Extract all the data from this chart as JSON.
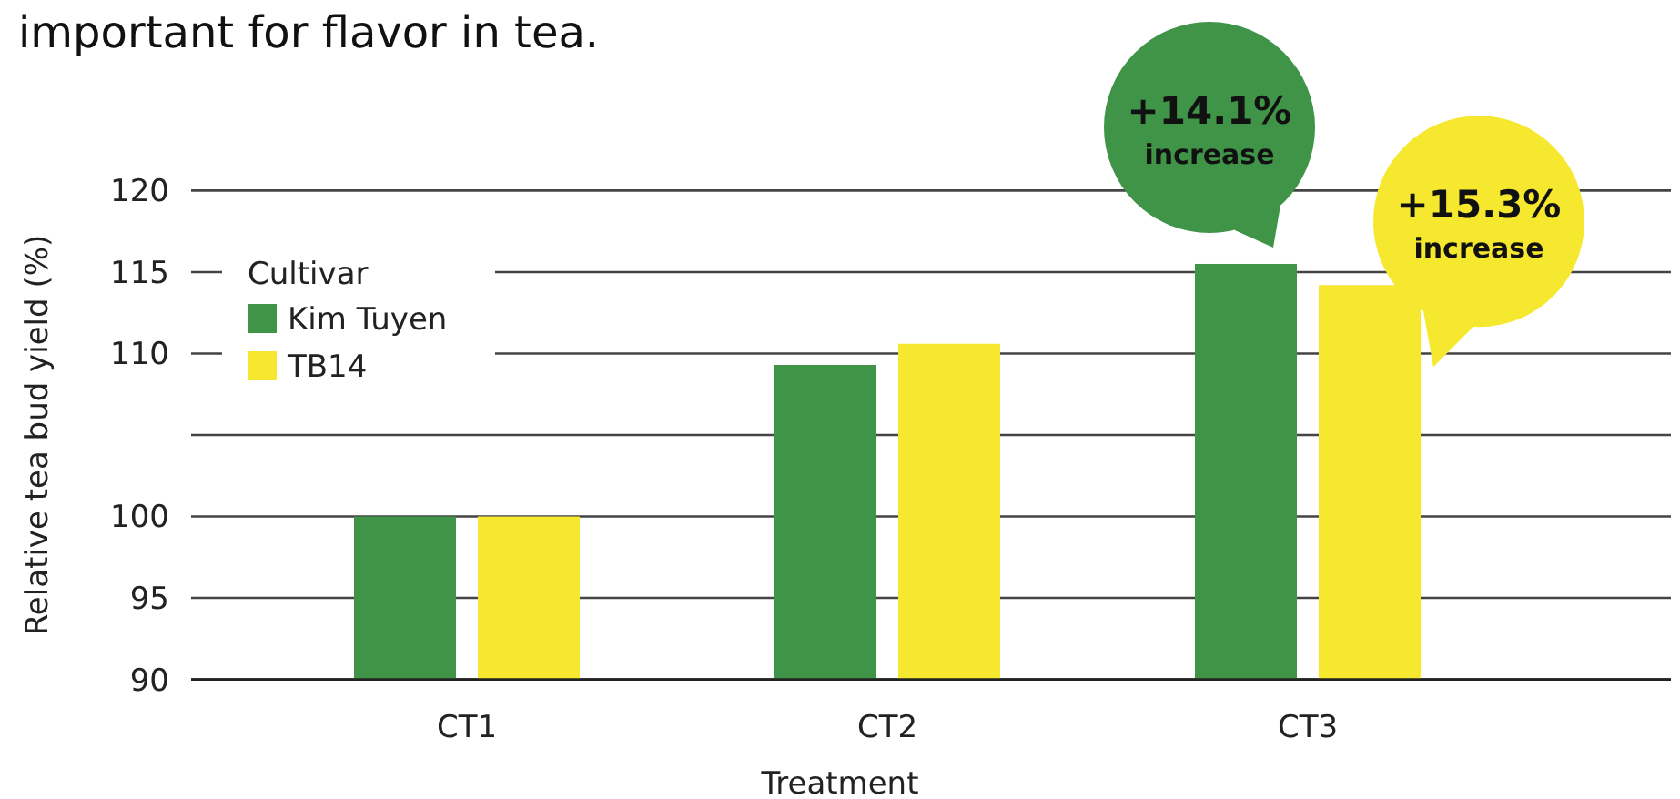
{
  "chart_data": {
    "type": "bar",
    "title": "important for flavor in tea.",
    "xlabel": "Treatment",
    "ylabel": "Relative tea bud yield (%)",
    "legend_title": "Cultivar",
    "categories": [
      "CT1",
      "CT2",
      "CT3"
    ],
    "series": [
      {
        "name": "Kim Tuyen",
        "color": "#3f9447",
        "values": [
          100,
          109.3,
          115.5
        ]
      },
      {
        "name": "TB14",
        "color": "#f5e82f",
        "values": [
          100,
          110.6,
          114.2
        ]
      }
    ],
    "ylim": [
      90,
      120
    ],
    "yticks": [
      90,
      95,
      100,
      {
        "value": 105,
        "label": null
      },
      110,
      115,
      120
    ],
    "grid": "y",
    "legend": "top left",
    "annotations": [
      "+14.1% increase",
      "+15.3% increase"
    ]
  }
}
